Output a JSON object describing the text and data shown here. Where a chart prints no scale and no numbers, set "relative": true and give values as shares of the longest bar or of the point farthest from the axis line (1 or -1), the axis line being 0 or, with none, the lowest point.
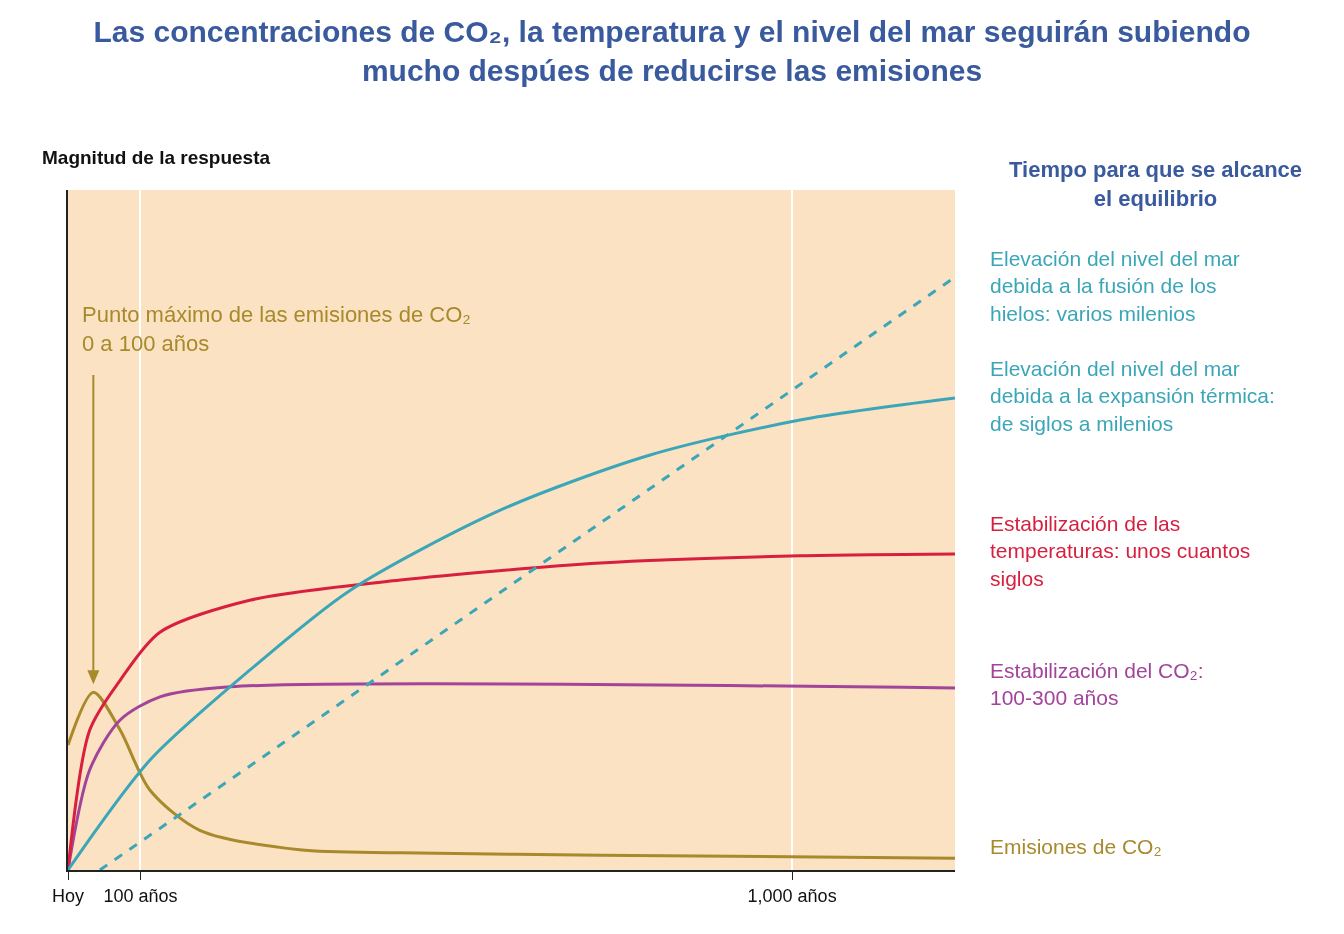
{
  "chart_data": {
    "type": "line",
    "title": "Las concentraciones de CO₂, la temperatura y el nivel del mar seguirán subiendo mucho despúes de reducirse las emisiones",
    "legend_title": "Tiempo para que se alcance el equilibrio",
    "relative": true,
    "xlim": [
      0,
      1225
    ],
    "xticks": [
      {
        "value": 0,
        "label": "Hoy"
      },
      {
        "value": 100,
        "label": "100 años"
      },
      {
        "value": 1000,
        "label": "1,000 años"
      }
    ],
    "grid": "x",
    "legend": false,
    "series": [
      {
        "name": "Emisiones de CO₂",
        "color": "#a8892c",
        "x": [
          0,
          35,
          72,
          113,
          182,
          320,
          459,
          735,
          1225
        ],
        "values": [
          0.211,
          0.3,
          0.236,
          0.135,
          0.067,
          0.034,
          0.029,
          0.025,
          0.02
        ]
      },
      {
        "name": "Estabilización del CO₂: 100-300 años",
        "color": "#a3449b",
        "x": [
          0,
          30,
          72,
          127,
          224,
          1225
        ],
        "values": [
          0,
          0.169,
          0.253,
          0.292,
          0.309,
          0.307
        ]
      },
      {
        "name": "Estabilización de las temperaturas: unos cuantos siglos",
        "color": "#d81f3f",
        "x": [
          0,
          30,
          72,
          127,
          251,
          459,
          735,
          1011,
          1225
        ],
        "values": [
          0,
          0.236,
          0.32,
          0.401,
          0.455,
          0.489,
          0.518,
          0.53,
          0.533
        ]
      },
      {
        "name": "Elevación del nivel del mar debida a la expansión térmica: de siglos a milenios",
        "color": "#3ba6b8",
        "x": [
          0,
          113,
          251,
          390,
          597,
          804,
          1011,
          1225
        ],
        "values": [
          0,
          0.185,
          0.337,
          0.472,
          0.607,
          0.7,
          0.759,
          0.796
        ]
      },
      {
        "name": "Elevación del nivel del mar debida a la fusión de los hielos: varios milenios",
        "color": "#3ba6b8",
        "line_style": "dashed",
        "x": [
          44,
          1225
        ],
        "values": [
          0,
          1
        ]
      }
    ],
    "annotations": [
      "Magnitud de la respuesta",
      "Punto máximo de las emisiones de CO₂ 0 a 100 años"
    ]
  }
}
